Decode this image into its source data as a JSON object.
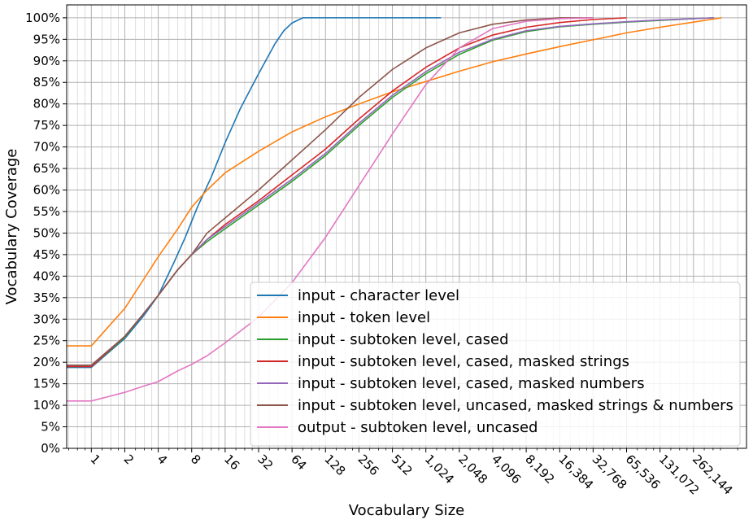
{
  "chart_data": {
    "type": "line",
    "xlabel": "Vocabulary Size",
    "ylabel": "Vocabulary Coverage",
    "x_scale": "log2",
    "xlim": [
      0.6,
      786432
    ],
    "ylim": [
      0,
      103
    ],
    "grid": true,
    "legend_position": "lower-right",
    "x_ticks": [
      1,
      2,
      4,
      8,
      16,
      32,
      64,
      128,
      256,
      512,
      1024,
      2048,
      4096,
      8192,
      16384,
      32768,
      65536,
      131072,
      262144
    ],
    "x_tick_labels": [
      "1",
      "2",
      "4",
      "8",
      "16",
      "32",
      "64",
      "128",
      "256",
      "512",
      "1,024",
      "2,048",
      "4,096",
      "8,192",
      "16,384",
      "32,768",
      "65,536",
      "131,072",
      "262,144"
    ],
    "y_ticks": [
      0,
      5,
      10,
      15,
      20,
      25,
      30,
      35,
      40,
      45,
      50,
      55,
      60,
      65,
      70,
      75,
      80,
      85,
      90,
      95,
      100
    ],
    "y_tick_labels": [
      "0%",
      "5%",
      "10%",
      "15%",
      "20%",
      "25%",
      "30%",
      "35%",
      "40%",
      "45%",
      "50%",
      "55%",
      "60%",
      "65%",
      "70%",
      "75%",
      "80%",
      "85%",
      "90%",
      "95%",
      "100%"
    ],
    "series": [
      {
        "name": "input - character level",
        "color": "#1f77b4",
        "points": [
          [
            0.6,
            18.8
          ],
          [
            1,
            18.8
          ],
          [
            2,
            25.5
          ],
          [
            3,
            31
          ],
          [
            4,
            35.5
          ],
          [
            5.5,
            43
          ],
          [
            7,
            49
          ],
          [
            9,
            56
          ],
          [
            12,
            63
          ],
          [
            16,
            71
          ],
          [
            22,
            79
          ],
          [
            32,
            87
          ],
          [
            45,
            94
          ],
          [
            54,
            97
          ],
          [
            64,
            98.8
          ],
          [
            80,
            100
          ],
          [
            128,
            100
          ],
          [
            512,
            100
          ],
          [
            1400,
            100
          ]
        ]
      },
      {
        "name": "input - token level",
        "color": "#ff7f0e",
        "points": [
          [
            0.6,
            23.8
          ],
          [
            1,
            23.8
          ],
          [
            2,
            32.5
          ],
          [
            3,
            39.5
          ],
          [
            4,
            44.5
          ],
          [
            6,
            51
          ],
          [
            8,
            56
          ],
          [
            11,
            60
          ],
          [
            16,
            64
          ],
          [
            32,
            69
          ],
          [
            64,
            73.5
          ],
          [
            128,
            77
          ],
          [
            256,
            80
          ],
          [
            512,
            82.8
          ],
          [
            1024,
            85.2
          ],
          [
            2048,
            87.6
          ],
          [
            4096,
            89.8
          ],
          [
            8192,
            91.6
          ],
          [
            16384,
            93.3
          ],
          [
            32768,
            94.9
          ],
          [
            65536,
            96.5
          ],
          [
            131072,
            97.8
          ],
          [
            262144,
            99
          ],
          [
            470000,
            100
          ]
        ]
      },
      {
        "name": "input - subtoken level, cased",
        "color": "#2ca02c",
        "points": [
          [
            0.6,
            19
          ],
          [
            1,
            19
          ],
          [
            2,
            25.8
          ],
          [
            3,
            31.5
          ],
          [
            4,
            35.5
          ],
          [
            6,
            41.5
          ],
          [
            8,
            45
          ],
          [
            11,
            48
          ],
          [
            16,
            51
          ],
          [
            32,
            56.5
          ],
          [
            64,
            62
          ],
          [
            128,
            68
          ],
          [
            256,
            75
          ],
          [
            512,
            81.5
          ],
          [
            1024,
            87
          ],
          [
            2048,
            91.5
          ],
          [
            4096,
            94.8
          ],
          [
            8192,
            96.8
          ],
          [
            16384,
            97.9
          ],
          [
            32768,
            98.5
          ],
          [
            65536,
            99
          ],
          [
            131072,
            99.4
          ],
          [
            262144,
            99.8
          ],
          [
            400000,
            100
          ]
        ]
      },
      {
        "name": "input - subtoken level, cased, masked strings",
        "color": "#d62728",
        "points": [
          [
            0.6,
            19
          ],
          [
            1,
            19
          ],
          [
            2,
            26
          ],
          [
            3,
            31.5
          ],
          [
            4,
            35.5
          ],
          [
            6,
            41.5
          ],
          [
            8,
            45
          ],
          [
            11,
            48.5
          ],
          [
            16,
            52
          ],
          [
            32,
            57.5
          ],
          [
            64,
            63.5
          ],
          [
            128,
            69.5
          ],
          [
            256,
            76.5
          ],
          [
            512,
            83
          ],
          [
            1024,
            88.5
          ],
          [
            2048,
            93
          ],
          [
            4096,
            96
          ],
          [
            8192,
            97.8
          ],
          [
            16384,
            98.9
          ],
          [
            32768,
            99.6
          ],
          [
            65536,
            100
          ]
        ]
      },
      {
        "name": "input - subtoken level, cased, masked numbers",
        "color": "#9467bd",
        "points": [
          [
            0.6,
            19.3
          ],
          [
            1,
            19.3
          ],
          [
            2,
            26
          ],
          [
            3,
            31.5
          ],
          [
            4,
            35.5
          ],
          [
            6,
            41.5
          ],
          [
            8,
            45
          ],
          [
            11,
            48.5
          ],
          [
            16,
            51.5
          ],
          [
            32,
            57
          ],
          [
            64,
            62.5
          ],
          [
            128,
            68.5
          ],
          [
            256,
            75.5
          ],
          [
            512,
            82
          ],
          [
            1024,
            87.5
          ],
          [
            2048,
            92
          ],
          [
            4096,
            95
          ],
          [
            8192,
            97
          ],
          [
            16384,
            98
          ],
          [
            32768,
            98.6
          ],
          [
            65536,
            99.1
          ],
          [
            131072,
            99.5
          ],
          [
            262144,
            99.8
          ],
          [
            400000,
            100
          ]
        ]
      },
      {
        "name": "input - subtoken level, uncased, masked strings & numbers",
        "color": "#8c564b",
        "points": [
          [
            0.6,
            19.3
          ],
          [
            1,
            19.3
          ],
          [
            2,
            26
          ],
          [
            3,
            31.5
          ],
          [
            4,
            35.5
          ],
          [
            6,
            41.5
          ],
          [
            8,
            45
          ],
          [
            11,
            50
          ],
          [
            16,
            53.5
          ],
          [
            32,
            60
          ],
          [
            64,
            67
          ],
          [
            128,
            74
          ],
          [
            256,
            81.5
          ],
          [
            512,
            88
          ],
          [
            1024,
            93
          ],
          [
            2048,
            96.5
          ],
          [
            4096,
            98.5
          ],
          [
            8192,
            99.5
          ],
          [
            16384,
            100
          ],
          [
            32768,
            100
          ]
        ]
      },
      {
        "name": "output - subtoken level, uncased",
        "color": "#e377c2",
        "points": [
          [
            0.6,
            11
          ],
          [
            1,
            11
          ],
          [
            2,
            13
          ],
          [
            3,
            14.5
          ],
          [
            4,
            15.5
          ],
          [
            6,
            18
          ],
          [
            8,
            19.5
          ],
          [
            11,
            21.5
          ],
          [
            16,
            24.5
          ],
          [
            32,
            30.5
          ],
          [
            64,
            38.5
          ],
          [
            128,
            49
          ],
          [
            256,
            61
          ],
          [
            512,
            73
          ],
          [
            1024,
            84.5
          ],
          [
            2048,
            93
          ],
          [
            4096,
            97.5
          ],
          [
            8192,
            99.2
          ],
          [
            16384,
            99.8
          ],
          [
            32768,
            100
          ]
        ]
      }
    ]
  }
}
